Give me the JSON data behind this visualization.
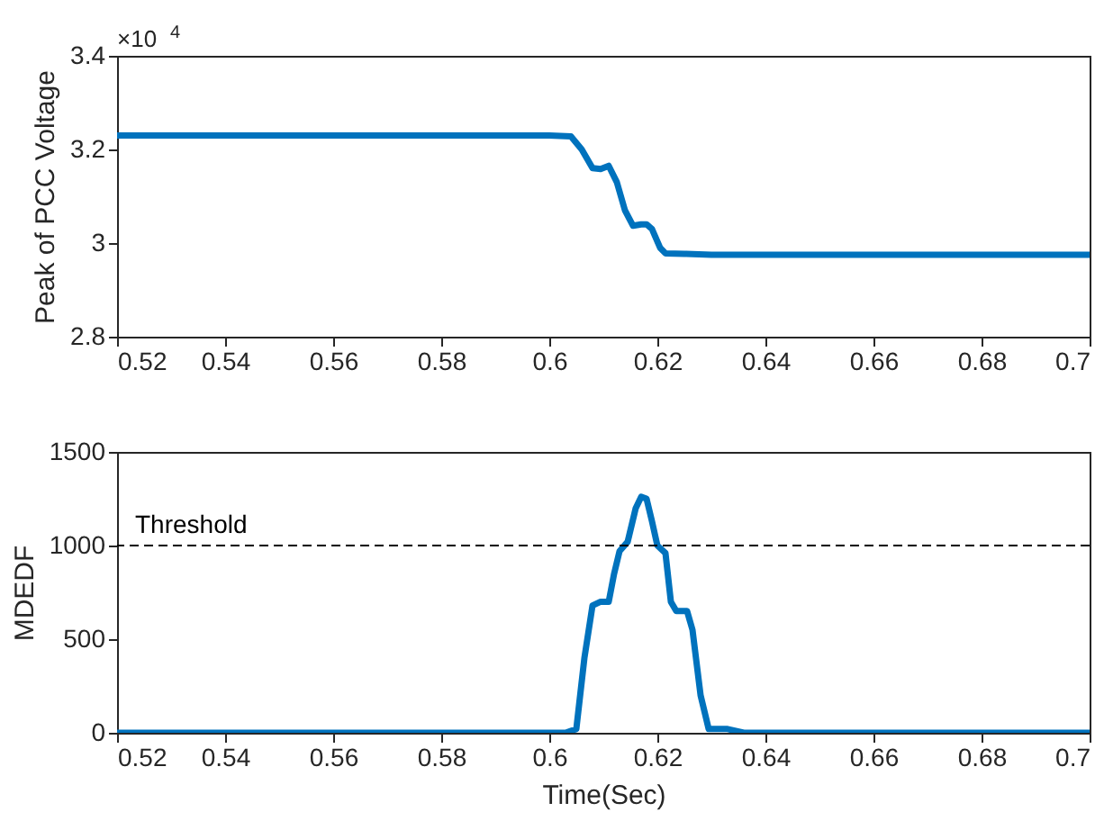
{
  "chart_data": [
    {
      "type": "line",
      "ylabel": "Peak of PCC Voltage",
      "annotations": [
        "×10$^{4}$"
      ],
      "grid": false,
      "xlim": [
        0.52,
        0.7
      ],
      "xticks": [
        0.52,
        0.54,
        0.56,
        0.58,
        0.6,
        0.62,
        0.64,
        0.66,
        0.68,
        0.7
      ],
      "ylim": [
        2.8,
        3.4
      ],
      "yticks": [
        2.8,
        3,
        3.2,
        3.4
      ],
      "x": [
        0.52,
        0.6,
        0.604,
        0.606,
        0.608,
        0.6095,
        0.611,
        0.6125,
        0.614,
        0.6155,
        0.617,
        0.618,
        0.619,
        0.6205,
        0.6215,
        0.625,
        0.63,
        0.7
      ],
      "series": [
        {
          "color": "#0072bd",
          "values": [
            3.23,
            3.23,
            3.228,
            3.2,
            3.16,
            3.158,
            3.165,
            3.13,
            3.07,
            3.037,
            3.04,
            3.04,
            3.03,
            2.99,
            2.978,
            2.977,
            2.975,
            2.975
          ]
        }
      ]
    },
    {
      "type": "line",
      "xlabel": "Time(Sec)",
      "ylabel": "MDEDF",
      "grid": false,
      "xlim": [
        0.52,
        0.7
      ],
      "xticks": [
        0.52,
        0.54,
        0.56,
        0.58,
        0.6,
        0.62,
        0.64,
        0.66,
        0.68,
        0.7
      ],
      "ylim": [
        0,
        1500
      ],
      "yticks": [
        0,
        500,
        1000,
        1500
      ],
      "x": [
        0.52,
        0.6,
        0.603,
        0.605,
        0.6065,
        0.608,
        0.6095,
        0.611,
        0.612,
        0.613,
        0.6145,
        0.616,
        0.617,
        0.618,
        0.619,
        0.62,
        0.6215,
        0.6225,
        0.6235,
        0.6255,
        0.6265,
        0.628,
        0.6295,
        0.633,
        0.636,
        0.64,
        0.7
      ],
      "series": [
        {
          "color": "#0072bd",
          "values": [
            0,
            0,
            0,
            20,
            400,
            680,
            700,
            700,
            850,
            970,
            1020,
            1200,
            1260,
            1250,
            1130,
            1000,
            960,
            700,
            650,
            650,
            550,
            200,
            20,
            20,
            0,
            0,
            0
          ]
        }
      ],
      "ref_lines": [
        {
          "axis": "y",
          "value": 1000,
          "label": "Threshold",
          "color": "#000000",
          "line_style": "dashed"
        }
      ]
    }
  ]
}
